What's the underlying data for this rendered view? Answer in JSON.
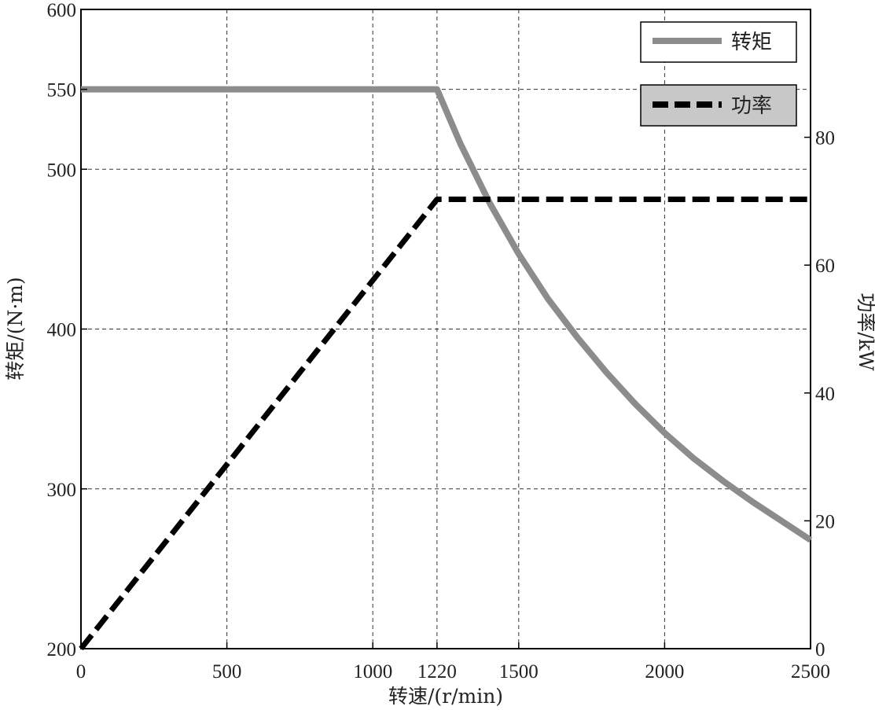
{
  "chart_data": {
    "type": "line",
    "title": "",
    "xlabel": "转速/(r/min)",
    "ylabel_left": "转矩/(N·m)",
    "ylabel_right": "功率/kW",
    "xlim": [
      0,
      2500
    ],
    "ylim_left": [
      200,
      600
    ],
    "ylim_right": [
      0,
      100
    ],
    "x_ticks": [
      0,
      500,
      1000,
      1220,
      1500,
      2000,
      2500
    ],
    "y_left_ticks": [
      200,
      300,
      400,
      500,
      550,
      600
    ],
    "y_right_ticks": [
      0,
      20,
      40,
      60,
      80
    ],
    "grid": true,
    "legend_position": "top-right",
    "series": [
      {
        "name": "转矩",
        "axis": "left",
        "color": "#8c8c8c",
        "style": "solid",
        "x": [
          0,
          1220,
          1300,
          1400,
          1500,
          1600,
          1700,
          1800,
          1900,
          2000,
          2100,
          2200,
          2300,
          2400,
          2500
        ],
        "y": [
          550,
          550,
          516,
          479,
          447,
          419,
          395,
          373,
          353,
          335,
          319,
          305,
          292,
          280,
          268
        ]
      },
      {
        "name": "功率",
        "axis": "right",
        "color": "#000000",
        "style": "dashed",
        "x": [
          0,
          1220,
          2500
        ],
        "y": [
          0,
          70.3,
          70.3
        ]
      }
    ]
  }
}
